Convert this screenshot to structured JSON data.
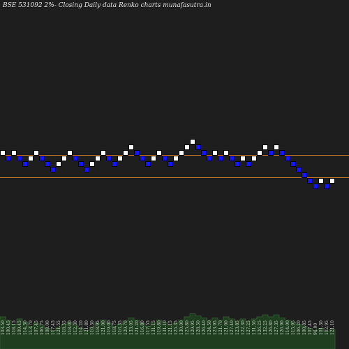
{
  "chart_data": {
    "type": "renko",
    "title": "BSE 531092  2%-  Closing Daily data  Renko  charts munafasutra.in",
    "colors": {
      "background": "#1e1e1e",
      "up_brick": "#ffffff",
      "down_brick": "#1414ff",
      "brick_border": "#000000",
      "level_line": "#c07830",
      "volume_fill": "#1f3d1f",
      "volume_stroke": "#3c6e3c"
    },
    "bricks": [
      {
        "level": 6,
        "dir": "up"
      },
      {
        "level": 5,
        "dir": "down"
      },
      {
        "level": 6,
        "dir": "up"
      },
      {
        "level": 5,
        "dir": "down"
      },
      {
        "level": 4,
        "dir": "down"
      },
      {
        "level": 5,
        "dir": "up"
      },
      {
        "level": 6,
        "dir": "up"
      },
      {
        "level": 5,
        "dir": "down"
      },
      {
        "level": 4,
        "dir": "down"
      },
      {
        "level": 3,
        "dir": "down"
      },
      {
        "level": 4,
        "dir": "up"
      },
      {
        "level": 5,
        "dir": "up"
      },
      {
        "level": 6,
        "dir": "up"
      },
      {
        "level": 5,
        "dir": "down"
      },
      {
        "level": 4,
        "dir": "down"
      },
      {
        "level": 3,
        "dir": "down"
      },
      {
        "level": 4,
        "dir": "up"
      },
      {
        "level": 5,
        "dir": "up"
      },
      {
        "level": 6,
        "dir": "up"
      },
      {
        "level": 5,
        "dir": "down"
      },
      {
        "level": 4,
        "dir": "down"
      },
      {
        "level": 5,
        "dir": "up"
      },
      {
        "level": 6,
        "dir": "up"
      },
      {
        "level": 7,
        "dir": "up"
      },
      {
        "level": 6,
        "dir": "down"
      },
      {
        "level": 5,
        "dir": "down"
      },
      {
        "level": 4,
        "dir": "down"
      },
      {
        "level": 5,
        "dir": "up"
      },
      {
        "level": 6,
        "dir": "up"
      },
      {
        "level": 5,
        "dir": "down"
      },
      {
        "level": 4,
        "dir": "down"
      },
      {
        "level": 5,
        "dir": "up"
      },
      {
        "level": 6,
        "dir": "up"
      },
      {
        "level": 7,
        "dir": "up"
      },
      {
        "level": 8,
        "dir": "up"
      },
      {
        "level": 7,
        "dir": "down"
      },
      {
        "level": 6,
        "dir": "down"
      },
      {
        "level": 5,
        "dir": "down"
      },
      {
        "level": 6,
        "dir": "up"
      },
      {
        "level": 5,
        "dir": "down"
      },
      {
        "level": 6,
        "dir": "up"
      },
      {
        "level": 5,
        "dir": "down"
      },
      {
        "level": 4,
        "dir": "down"
      },
      {
        "level": 5,
        "dir": "up"
      },
      {
        "level": 4,
        "dir": "down"
      },
      {
        "level": 5,
        "dir": "up"
      },
      {
        "level": 6,
        "dir": "up"
      },
      {
        "level": 7,
        "dir": "up"
      },
      {
        "level": 6,
        "dir": "down"
      },
      {
        "level": 7,
        "dir": "up"
      },
      {
        "level": 6,
        "dir": "down"
      },
      {
        "level": 5,
        "dir": "down"
      },
      {
        "level": 4,
        "dir": "down"
      },
      {
        "level": 3,
        "dir": "down"
      },
      {
        "level": 2,
        "dir": "down"
      },
      {
        "level": 1,
        "dir": "down"
      },
      {
        "level": 0,
        "dir": "down"
      },
      {
        "level": 1,
        "dir": "up"
      },
      {
        "level": 0,
        "dir": "down"
      },
      {
        "level": 1,
        "dir": "up"
      }
    ],
    "level_lines": [
      6,
      2
    ],
    "volume": [
      62,
      55,
      48,
      58,
      52,
      44,
      50,
      46,
      40,
      36,
      42,
      48,
      52,
      46,
      40,
      36,
      42,
      50,
      56,
      50,
      44,
      48,
      54,
      60,
      56,
      50,
      44,
      50,
      56,
      52,
      46,
      50,
      56,
      62,
      68,
      64,
      60,
      56,
      60,
      56,
      62,
      58,
      54,
      58,
      54,
      58,
      62,
      66,
      62,
      66,
      60,
      56,
      52,
      48,
      44,
      40,
      36,
      40,
      34,
      38
    ],
    "volume_labels": [
      "103.50",
      "100.45",
      "118.15",
      "109.45",
      "114.30",
      "113.70",
      "107.45",
      "106.75",
      "108.00",
      "117.45",
      "121.55",
      "118.55",
      "118.00",
      "112.30",
      "114.20",
      "121.80",
      "110.30",
      "118.95",
      "121.00",
      "119.00",
      "118.75",
      "116.35",
      "129.70",
      "133.05",
      "121.20",
      "116.80",
      "117.55",
      "131.15",
      "119.80",
      "131.10",
      "121.15",
      "125.35",
      "130.00",
      "125.80",
      "129.95",
      "128.50",
      "126.40",
      "124.50",
      "123.95",
      "121.70",
      "121.00",
      "127.40",
      "123.85",
      "122.30",
      "127.25",
      "131.50",
      "126.25",
      "132.25",
      "126.80",
      "127.35",
      "126.90",
      "114.00",
      "115.95",
      "106.20",
      "100.85",
      "107.45",
      "96.00",
      "101.30",
      "102.95",
      "121.10"
    ]
  }
}
